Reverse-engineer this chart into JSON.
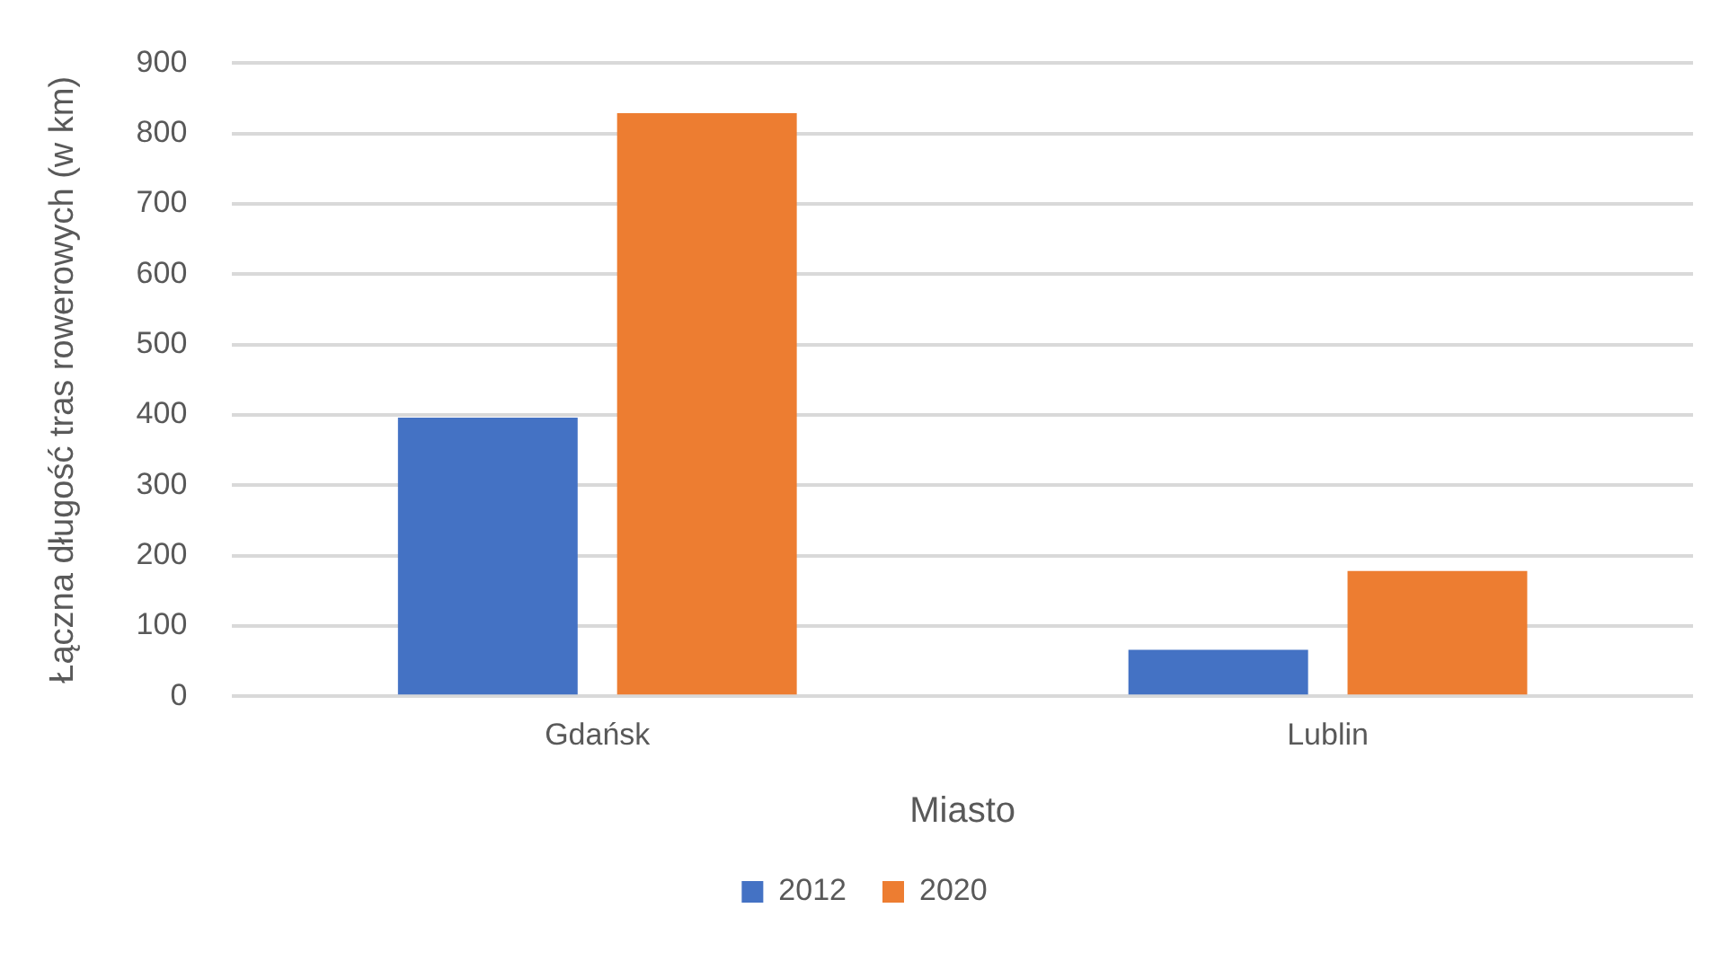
{
  "chart_data": {
    "type": "bar",
    "xlabel": "Miasto",
    "ylabel": "Łączna długość tras rowerowych (w km)",
    "categories": [
      "Gdańsk",
      "Lublin"
    ],
    "series": [
      {
        "name": "2012",
        "color": "#4472c4",
        "values": [
          396,
          66
        ]
      },
      {
        "name": "2020",
        "color": "#ed7d31",
        "values": [
          829,
          178
        ]
      }
    ],
    "ylim": [
      0,
      900
    ],
    "yticks": [
      0,
      100,
      200,
      300,
      400,
      500,
      600,
      700,
      800,
      900
    ],
    "grid": "y",
    "legend": "bottom"
  }
}
